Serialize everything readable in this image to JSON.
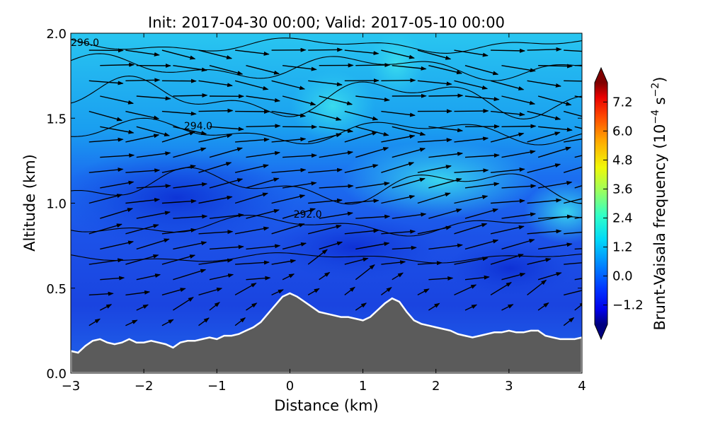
{
  "chart_data": {
    "type": "heatmap",
    "title": "Init: 2017-04-30 00:00; Valid: 2017-05-10 00:00",
    "xlabel": "Distance (km)",
    "ylabel": "Altitude (km)",
    "xlim": [
      -3,
      4
    ],
    "ylim": [
      0,
      2
    ],
    "xticks": [
      "−3",
      "−2",
      "−1",
      "0",
      "1",
      "2",
      "3",
      "4"
    ],
    "xtick_values": [
      -3,
      -2,
      -1,
      0,
      1,
      2,
      3,
      4
    ],
    "yticks": [
      "0.0",
      "0.5",
      "1.0",
      "1.5",
      "2.0"
    ],
    "ytick_values": [
      0,
      0.5,
      1.0,
      1.5,
      2.0
    ],
    "colorbar": {
      "label": "Brunt-Vaisala frequency (10⁻⁴ s⁻²)",
      "label_main": "Brunt-Vaisala frequency (10",
      "label_exp1": "−4",
      "label_mid": " s",
      "label_exp2": "−2",
      "label_end": ")",
      "range": [
        -2.0,
        8.0
      ],
      "extend": "both",
      "ticks": [
        "−1.2",
        "0.0",
        "1.2",
        "2.4",
        "3.6",
        "4.8",
        "6.0",
        "7.2"
      ],
      "tick_values": [
        -1.2,
        0.0,
        1.2,
        2.4,
        3.6,
        4.8,
        6.0,
        7.2
      ],
      "colormap": "jet"
    },
    "contour_labels": [
      {
        "text": "296.0",
        "x": -3.0,
        "y": 1.95
      },
      {
        "text": "294.0",
        "x": -1.45,
        "y": 1.46
      },
      {
        "text": "292.0",
        "x": 0.05,
        "y": 0.94
      }
    ],
    "terrain": {
      "x": [
        -3.0,
        -2.9,
        -2.8,
        -2.7,
        -2.6,
        -2.5,
        -2.4,
        -2.3,
        -2.2,
        -2.1,
        -2.0,
        -1.9,
        -1.8,
        -1.7,
        -1.6,
        -1.5,
        -1.4,
        -1.3,
        -1.2,
        -1.1,
        -1.0,
        -0.9,
        -0.8,
        -0.7,
        -0.6,
        -0.5,
        -0.4,
        -0.3,
        -0.2,
        -0.1,
        0.0,
        0.1,
        0.2,
        0.3,
        0.4,
        0.5,
        0.6,
        0.7,
        0.8,
        0.9,
        1.0,
        1.1,
        1.2,
        1.3,
        1.4,
        1.5,
        1.6,
        1.7,
        1.8,
        1.9,
        2.0,
        2.1,
        2.2,
        2.3,
        2.4,
        2.5,
        2.6,
        2.7,
        2.8,
        2.9,
        3.0,
        3.1,
        3.2,
        3.3,
        3.4,
        3.5,
        3.6,
        3.7,
        3.8,
        3.9,
        4.0
      ],
      "y": [
        0.13,
        0.12,
        0.16,
        0.19,
        0.2,
        0.18,
        0.17,
        0.18,
        0.2,
        0.18,
        0.18,
        0.19,
        0.18,
        0.17,
        0.15,
        0.18,
        0.19,
        0.19,
        0.2,
        0.21,
        0.2,
        0.22,
        0.22,
        0.23,
        0.25,
        0.27,
        0.3,
        0.35,
        0.4,
        0.45,
        0.47,
        0.45,
        0.42,
        0.39,
        0.36,
        0.35,
        0.34,
        0.33,
        0.33,
        0.32,
        0.31,
        0.33,
        0.37,
        0.41,
        0.44,
        0.42,
        0.36,
        0.31,
        0.29,
        0.28,
        0.27,
        0.26,
        0.25,
        0.23,
        0.22,
        0.21,
        0.22,
        0.23,
        0.24,
        0.24,
        0.25,
        0.24,
        0.24,
        0.25,
        0.25,
        0.22,
        0.21,
        0.2,
        0.2,
        0.2,
        0.21
      ]
    },
    "colors": {
      "terrain_fill": "#5b5b5b",
      "terrain_edge": "#ffffff",
      "field_low": "#1f4ee8",
      "field_mid": "#1c98ef",
      "field_high": "#25c4ee"
    }
  }
}
